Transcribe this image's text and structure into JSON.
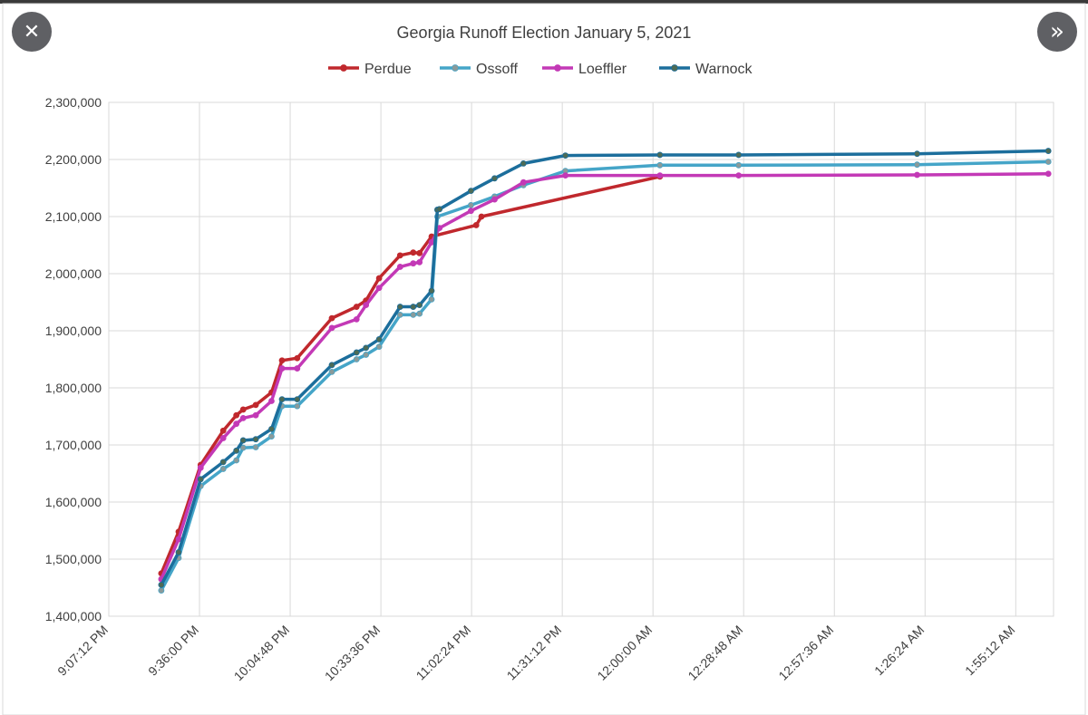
{
  "viewer": {
    "close_icon": "close-icon",
    "next_icon": "chevron-double-right-icon",
    "close_glyph": "✕",
    "next_glyph": "»"
  },
  "chart_data": {
    "type": "line",
    "title": "Georgia Runoff Election January 5, 2021",
    "xlabel": "",
    "ylabel": "",
    "ylim": [
      1400000,
      2300000
    ],
    "yticks": [
      1400000,
      1500000,
      1600000,
      1700000,
      1800000,
      1900000,
      2000000,
      2100000,
      2200000,
      2300000
    ],
    "ytick_labels": [
      "1,400,000",
      "1,500,000",
      "1,600,000",
      "1,700,000",
      "1,800,000",
      "1,900,000",
      "2,000,000",
      "2,100,000",
      "2,200,000",
      "2,300,000"
    ],
    "xlim": [
      0,
      18000
    ],
    "xticks": [
      0,
      1728,
      3456,
      5184,
      6912,
      8640,
      10368,
      12096,
      13824,
      15552,
      17280
    ],
    "xtick_labels": [
      "9:07:12 PM",
      "9:36:00 PM",
      "10:04:48 PM",
      "10:33:36 PM",
      "11:02:24 PM",
      "11:31:12 PM",
      "12:00:00 AM",
      "12:28:48 AM",
      "12:57:36 AM",
      "1:26:24 AM",
      "1:55:12 AM"
    ],
    "x_unit": "seconds after 9:07:12 PM",
    "grid": true,
    "legend_position": "top",
    "series": [
      {
        "name": "Perdue",
        "color": "#c0282d",
        "marker": "#c0282d",
        "x": [
          1000,
          1330,
          1750,
          2180,
          2430,
          2560,
          2800,
          3100,
          3300,
          3590,
          4250,
          4720,
          4900,
          5150,
          5550,
          5800,
          5920,
          6150,
          7000,
          7100,
          10500
        ],
        "values": [
          1475000,
          1548000,
          1665000,
          1725000,
          1752000,
          1762000,
          1770000,
          1792000,
          1848000,
          1852000,
          1922000,
          1942000,
          1953000,
          1992000,
          2032000,
          2037000,
          2036000,
          2065000,
          2085000,
          2100000,
          2170000
        ]
      },
      {
        "name": "Ossoff",
        "color": "#45a5c8",
        "marker": "#8a9a9a",
        "x": [
          1000,
          1330,
          1750,
          2180,
          2430,
          2560,
          2800,
          3100,
          3300,
          3590,
          4250,
          4720,
          4900,
          5150,
          5550,
          5800,
          5920,
          6150,
          6260,
          6900,
          7350,
          7900,
          8700,
          10500,
          12000,
          15400,
          17900
        ],
        "values": [
          1445000,
          1502000,
          1628000,
          1658000,
          1673000,
          1695000,
          1696000,
          1715000,
          1768000,
          1768000,
          1828000,
          1850000,
          1858000,
          1872000,
          1928000,
          1928000,
          1930000,
          1955000,
          2100000,
          2120000,
          2135000,
          2155000,
          2180000,
          2190000,
          2190000,
          2191000,
          2196000
        ]
      },
      {
        "name": "Loeffler",
        "color": "#c339b6",
        "marker": "#c339b6",
        "x": [
          1000,
          1330,
          1750,
          2180,
          2430,
          2560,
          2800,
          3100,
          3300,
          3590,
          4250,
          4720,
          4900,
          5150,
          5550,
          5800,
          5920,
          6150,
          6300,
          6900,
          7350,
          7900,
          8700,
          10500,
          12000,
          15400,
          17900
        ],
        "values": [
          1465000,
          1535000,
          1660000,
          1712000,
          1737000,
          1747000,
          1752000,
          1777000,
          1834000,
          1834000,
          1905000,
          1920000,
          1945000,
          1975000,
          2012000,
          2018000,
          2020000,
          2055000,
          2080000,
          2110000,
          2130000,
          2160000,
          2172000,
          2172000,
          2172000,
          2173000,
          2175000
        ]
      },
      {
        "name": "Warnock",
        "color": "#1c6e9c",
        "marker": "#4d6b56",
        "x": [
          1000,
          1330,
          1750,
          2180,
          2430,
          2560,
          2800,
          3100,
          3300,
          3590,
          4250,
          4720,
          4900,
          5150,
          5550,
          5800,
          5920,
          6150,
          6260,
          6300,
          6900,
          7350,
          7900,
          8700,
          10500,
          12000,
          15400,
          17900
        ],
        "values": [
          1455000,
          1512000,
          1640000,
          1670000,
          1690000,
          1708000,
          1710000,
          1728000,
          1780000,
          1780000,
          1840000,
          1862000,
          1870000,
          1885000,
          1942000,
          1942000,
          1945000,
          1970000,
          2112000,
          2113000,
          2145000,
          2167000,
          2193000,
          2207000,
          2208000,
          2208000,
          2210000,
          2215000
        ]
      }
    ]
  }
}
